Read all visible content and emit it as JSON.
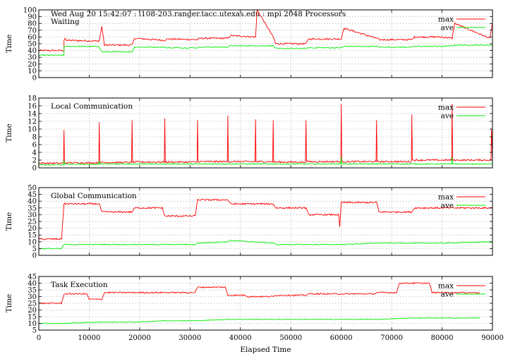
{
  "header": {
    "title": "Wed Aug 20 15:42:07 : i108-203.ranger.tacc.utexas.edu : mpi 2048 Processors"
  },
  "colors": {
    "max": "#ff0000",
    "ave": "#00ee00",
    "grid": "#b9b9b9",
    "frame": "#000000"
  },
  "chart_data": [
    {
      "type": "line",
      "title": "Waiting",
      "ylabel": "Time",
      "xlabel": "",
      "xlim": [
        0,
        90000
      ],
      "ylim": [
        0,
        100
      ],
      "yticks": [
        0,
        10,
        20,
        30,
        40,
        50,
        60,
        70,
        80,
        90,
        100
      ],
      "xticks": [
        0,
        10000,
        20000,
        30000,
        40000,
        50000,
        60000,
        70000,
        80000,
        90000
      ],
      "show_xtick_labels": false,
      "grid": true,
      "legend": "top-right",
      "series": [
        {
          "name": "max",
          "color": "#ff0000",
          "x": [
            0,
            5000,
            5000,
            5200,
            5500,
            12000,
            12500,
            13000,
            18500,
            19000,
            25000,
            25500,
            31500,
            32000,
            37500,
            38000,
            43000,
            43300,
            46500,
            47000,
            53000,
            53500,
            60000,
            60500,
            67000,
            67500,
            74000,
            74500,
            80000,
            82000,
            82500,
            89500,
            90000
          ],
          "y": [
            40,
            40,
            55,
            58,
            55,
            54,
            76,
            48,
            48,
            58,
            55,
            57,
            56,
            58,
            58,
            62,
            60,
            100,
            60,
            50,
            50,
            57,
            57,
            73,
            58,
            56,
            56,
            60,
            60,
            58,
            80,
            58,
            82
          ]
        },
        {
          "name": "ave",
          "color": "#00ee00",
          "x": [
            0,
            5000,
            5000,
            12000,
            12500,
            18500,
            19000,
            25000,
            25500,
            31500,
            32000,
            37500,
            38000,
            43000,
            43300,
            46500,
            47000,
            53000,
            53500,
            60000,
            60500,
            67000,
            67500,
            74000,
            74500,
            80000,
            82000,
            82500,
            90000
          ],
          "y": [
            33,
            33,
            46,
            46,
            38,
            38,
            45,
            45,
            44,
            44,
            45,
            45,
            47,
            47,
            47,
            47,
            43,
            43,
            44,
            44,
            46,
            46,
            45,
            45,
            46,
            46,
            47,
            48,
            48
          ]
        }
      ]
    },
    {
      "type": "line",
      "title": "Local Communication",
      "ylabel": "Time",
      "xlabel": "",
      "xlim": [
        0,
        90000
      ],
      "ylim": [
        0,
        18
      ],
      "yticks": [
        0,
        2,
        4,
        6,
        8,
        10,
        12,
        14,
        16,
        18
      ],
      "xticks": [
        0,
        10000,
        20000,
        30000,
        40000,
        50000,
        60000,
        70000,
        80000,
        90000
      ],
      "show_xtick_labels": false,
      "grid": true,
      "legend": "top-right",
      "series": [
        {
          "name": "max",
          "color": "#ff0000",
          "x": [
            0,
            4900,
            5000,
            5100,
            11900,
            12000,
            12100,
            18400,
            18500,
            18600,
            24900,
            25000,
            25100,
            31400,
            31500,
            31600,
            37400,
            37500,
            37600,
            42900,
            43000,
            43100,
            46400,
            46500,
            46600,
            52900,
            53000,
            53100,
            59900,
            60000,
            60100,
            66900,
            67000,
            67100,
            73900,
            74000,
            74100,
            81900,
            82000,
            82100,
            89700,
            89800,
            90000
          ],
          "y": [
            1.2,
            1.2,
            9.8,
            1.3,
            1.3,
            11.8,
            1.4,
            1.4,
            12.3,
            1.5,
            1.5,
            12.8,
            1.5,
            1.5,
            12.3,
            1.6,
            1.6,
            13.5,
            1.6,
            1.6,
            12.5,
            1.6,
            1.6,
            12.3,
            1.5,
            1.5,
            12.3,
            1.6,
            1.6,
            16.5,
            1.6,
            1.6,
            12.3,
            1.6,
            1.6,
            13.8,
            2,
            2,
            16.5,
            2,
            2,
            10,
            2
          ]
        },
        {
          "name": "ave",
          "color": "#00ee00",
          "x": [
            0,
            4900,
            5000,
            5100,
            11900,
            12000,
            12100,
            59900,
            60000,
            60100,
            81900,
            82000,
            82100,
            90000
          ],
          "y": [
            0.8,
            0.8,
            2,
            0.9,
            0.9,
            1.8,
            1.0,
            1.0,
            2.8,
            1.0,
            1.0,
            2.8,
            1.0,
            1.0
          ]
        }
      ]
    },
    {
      "type": "line",
      "title": "Global Communication",
      "ylabel": "Time",
      "xlabel": "",
      "xlim": [
        0,
        90000
      ],
      "ylim": [
        0,
        50
      ],
      "yticks": [
        0,
        5,
        10,
        15,
        20,
        25,
        30,
        35,
        40,
        45,
        50
      ],
      "xticks": [
        0,
        10000,
        20000,
        30000,
        40000,
        50000,
        60000,
        70000,
        80000,
        90000
      ],
      "show_xtick_labels": false,
      "grid": true,
      "legend": "top-right",
      "series": [
        {
          "name": "max",
          "color": "#ff0000",
          "x": [
            0,
            4500,
            5000,
            12000,
            12500,
            18500,
            19000,
            24500,
            25000,
            31000,
            31500,
            37500,
            38000,
            46500,
            47000,
            53000,
            53500,
            59500,
            59700,
            60000,
            67000,
            67500,
            74000,
            74500,
            80000,
            80500,
            90000
          ],
          "y": [
            12,
            12,
            38,
            38,
            32,
            32,
            35,
            35,
            29,
            29,
            41,
            41,
            38,
            38,
            35,
            35,
            30,
            30,
            21,
            39,
            39,
            32,
            32,
            35,
            35,
            35,
            35
          ]
        },
        {
          "name": "ave",
          "color": "#00ee00",
          "x": [
            0,
            4500,
            5000,
            12000,
            12500,
            31000,
            31500,
            37500,
            38000,
            46500,
            47000,
            60000,
            67000,
            74000,
            80000,
            90000
          ],
          "y": [
            5,
            5,
            8,
            8,
            8,
            8,
            9,
            10,
            11,
            9,
            8,
            8,
            9,
            9,
            9,
            10
          ]
        }
      ]
    },
    {
      "type": "line",
      "title": "Task Execution",
      "ylabel": "Time",
      "xlabel": "Elapsed Time",
      "xlim": [
        0,
        90000
      ],
      "ylim": [
        5,
        45
      ],
      "yticks": [
        5,
        10,
        15,
        20,
        25,
        30,
        35,
        40,
        45
      ],
      "xticks": [
        0,
        10000,
        20000,
        30000,
        40000,
        50000,
        60000,
        70000,
        80000,
        90000
      ],
      "show_xtick_labels": true,
      "grid": true,
      "legend": "top-right",
      "series": [
        {
          "name": "max",
          "color": "#ff0000",
          "x": [
            0,
            4500,
            5000,
            9500,
            10000,
            12500,
            13000,
            18500,
            19000,
            24500,
            25000,
            31000,
            31500,
            37000,
            37500,
            41000,
            41500,
            46500,
            47000,
            53000,
            53500,
            60000,
            60500,
            66500,
            67000,
            71000,
            71500,
            77500,
            78000,
            82000,
            82500,
            87500
          ],
          "y": [
            25,
            25,
            32,
            32,
            28,
            28,
            33,
            33,
            33,
            33,
            33,
            33,
            37,
            37,
            31,
            31,
            30,
            30,
            31,
            31,
            32,
            32,
            32,
            32,
            33,
            33,
            40,
            40,
            33,
            33,
            33,
            33
          ]
        },
        {
          "name": "ave",
          "color": "#00ee00",
          "x": [
            0,
            5000,
            12500,
            19000,
            25000,
            31500,
            37500,
            46500,
            53000,
            60000,
            67000,
            74000,
            80000,
            87500
          ],
          "y": [
            10,
            10,
            11,
            11,
            12,
            12,
            13,
            13,
            13,
            13,
            13,
            14,
            14,
            14
          ]
        }
      ]
    }
  ]
}
